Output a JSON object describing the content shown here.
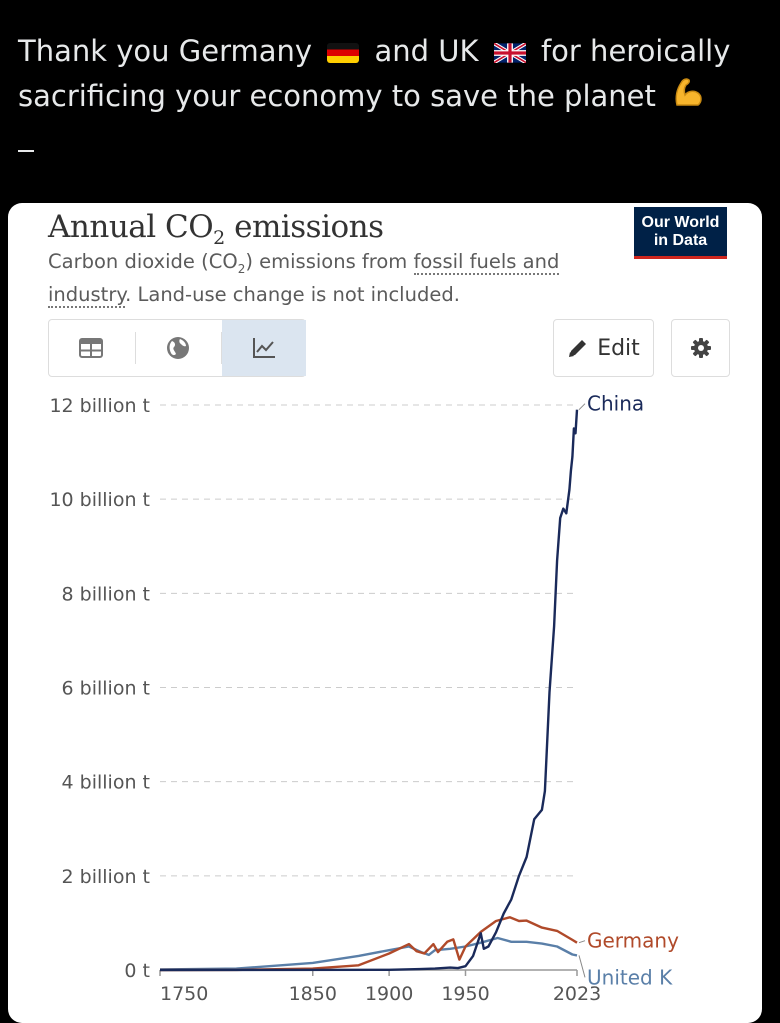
{
  "tweet": {
    "line1_part1": "Thank you Germany",
    "line1_part2": "and UK",
    "line1_part3": "for heroically",
    "line2": "sacrificing your economy to save the planet",
    "flag1_icon": "germany-flag-icon",
    "flag2_icon": "uk-flag-icon",
    "emoji_icon": "flexed-biceps-icon"
  },
  "card": {
    "title_main": "Annual CO",
    "title_sub": "2",
    "title_end": " emissions",
    "subtitle_a": "Carbon dioxide (CO",
    "subtitle_sub": "2",
    "subtitle_b": ") emissions from ",
    "subtitle_link1": "fossil fuels and",
    "subtitle_link2": "industry",
    "subtitle_c": ". Land-use change is not included.",
    "logo_line1": "Our World",
    "logo_line2": "in Data",
    "edit_label": "Edit",
    "colors": {
      "china": "#1a2a5a",
      "germany": "#b04a2a",
      "uk": "#5a7fa8"
    }
  },
  "chart_data": {
    "type": "line",
    "title": "Annual CO₂ emissions",
    "subtitle": "Carbon dioxide (CO₂) emissions from fossil fuels and industry. Land-use change is not included.",
    "y_ticks": [
      "12 billion t",
      "10 billion t",
      "8 billion t",
      "6 billion t",
      "4 billion t",
      "2 billion t",
      "0 t"
    ],
    "y_tick_values": [
      12,
      10,
      8,
      6,
      4,
      2,
      0
    ],
    "x_ticks": [
      "1750",
      "1850",
      "1900",
      "1950",
      "2023"
    ],
    "x_tick_values": [
      1750,
      1850,
      1900,
      1950,
      2023
    ],
    "xlim": [
      1750,
      2023
    ],
    "ylim": [
      0,
      12
    ],
    "grid": true,
    "series": [
      {
        "name": "China",
        "label": "China",
        "x": [
          1750,
          1900,
          1920,
          1930,
          1940,
          1945,
          1950,
          1955,
          1960,
          1962,
          1965,
          1970,
          1975,
          1980,
          1985,
          1990,
          1995,
          2000,
          2002,
          2005,
          2008,
          2010,
          2012,
          2014,
          2016,
          2018,
          2019,
          2020,
          2021,
          2022,
          2023
        ],
        "y": [
          0,
          0.005,
          0.02,
          0.03,
          0.05,
          0.04,
          0.08,
          0.3,
          0.78,
          0.45,
          0.5,
          0.8,
          1.2,
          1.5,
          2.0,
          2.4,
          3.2,
          3.4,
          3.8,
          5.9,
          7.3,
          8.7,
          9.6,
          9.8,
          9.7,
          10.2,
          10.6,
          10.9,
          11.5,
          11.4,
          11.9
        ]
      },
      {
        "name": "Germany",
        "label": "Germany",
        "x": [
          1750,
          1800,
          1850,
          1880,
          1900,
          1913,
          1918,
          1923,
          1929,
          1932,
          1938,
          1942,
          1946,
          1950,
          1960,
          1970,
          1979,
          1985,
          1990,
          2000,
          2010,
          2020,
          2023
        ],
        "y": [
          0,
          0.002,
          0.03,
          0.1,
          0.35,
          0.55,
          0.4,
          0.35,
          0.55,
          0.38,
          0.6,
          0.65,
          0.22,
          0.5,
          0.81,
          1.04,
          1.12,
          1.04,
          1.05,
          0.9,
          0.83,
          0.64,
          0.58
        ]
      },
      {
        "name": "United Kingdom",
        "label": "United K",
        "x": [
          1750,
          1800,
          1850,
          1880,
          1900,
          1913,
          1921,
          1926,
          1930,
          1940,
          1950,
          1960,
          1971,
          1980,
          1990,
          2000,
          2010,
          2020,
          2023
        ],
        "y": [
          0.01,
          0.03,
          0.15,
          0.3,
          0.42,
          0.5,
          0.38,
          0.32,
          0.42,
          0.45,
          0.5,
          0.58,
          0.68,
          0.6,
          0.6,
          0.56,
          0.5,
          0.33,
          0.31
        ]
      }
    ]
  }
}
